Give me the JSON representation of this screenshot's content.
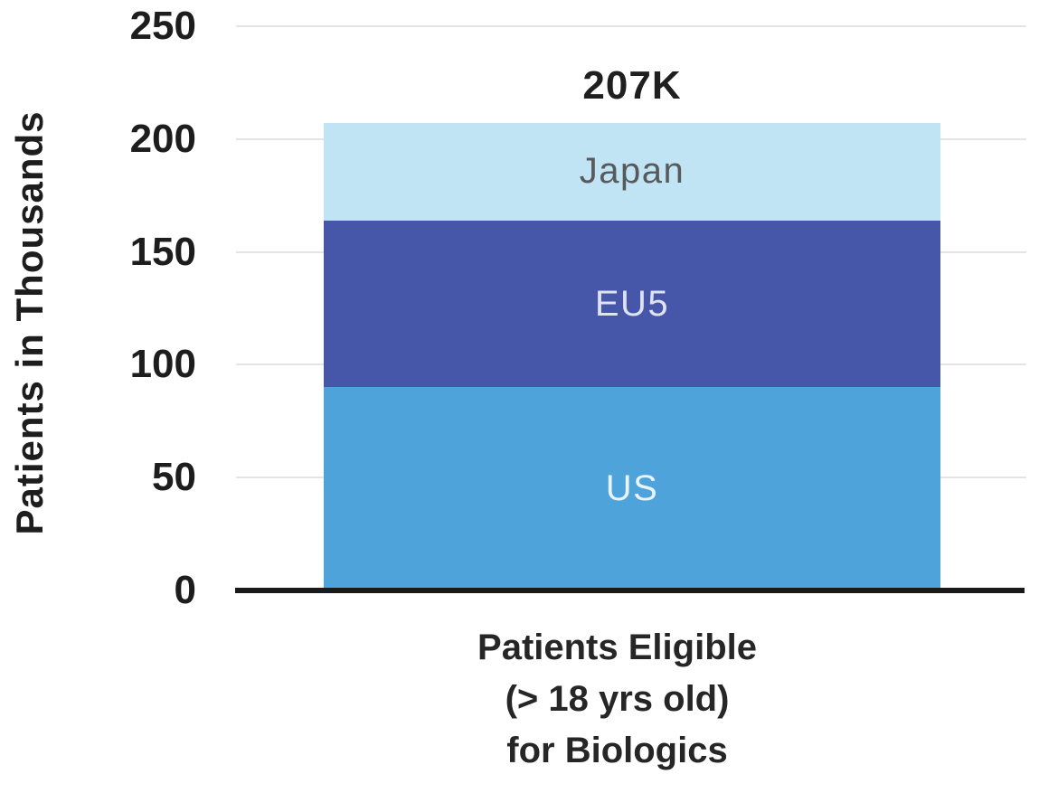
{
  "chart_data": {
    "type": "bar",
    "stacked": true,
    "bar_total_label": "207K",
    "total": 207,
    "categories": [
      "Patients Eligible (> 18 yrs old) for Biologics"
    ],
    "series": [
      {
        "name": "US",
        "values": [
          90
        ],
        "color": "#4EA4DA",
        "label_color": "#EAF2FA"
      },
      {
        "name": "EU5",
        "values": [
          74
        ],
        "color": "#4657A9",
        "label_color": "#DFE3F0"
      },
      {
        "name": "Japan",
        "values": [
          43
        ],
        "color": "#C0E4F4",
        "label_color": "#58595B"
      }
    ],
    "ylabel": "Patients in Thousands",
    "xlabel_lines": [
      "Patients Eligible",
      "(> 18 yrs old)",
      "for Biologics"
    ],
    "ylim": [
      0,
      250
    ],
    "yticks": [
      0,
      50,
      100,
      150,
      200,
      250
    ],
    "grid": true,
    "legend_position": "in-bar"
  },
  "colors": {
    "background": "#ffffff",
    "gridline": "#e4e4e4",
    "axis_line": "#1a1a1a",
    "text": "#1d1d1d"
  }
}
